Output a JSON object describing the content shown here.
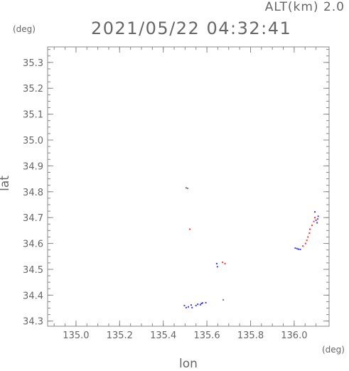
{
  "header": {
    "alt_label": "ALT(km) 2.0",
    "timestamp": "2021/05/22 04:32:41",
    "y_unit": "(deg)",
    "x_unit": "(deg)"
  },
  "chart_data": {
    "type": "scatter",
    "title": "2021/05/22 04:32:41",
    "xlabel": "lon",
    "ylabel": "lat",
    "xlim": [
      134.87,
      136.16
    ],
    "ylim": [
      34.28,
      35.36
    ],
    "x_ticks": [
      "135.0",
      "135.2",
      "135.4",
      "135.6",
      "135.8",
      "136.0"
    ],
    "y_ticks": [
      "34.3",
      "34.4",
      "34.5",
      "34.6",
      "34.7",
      "34.8",
      "34.9",
      "35.0",
      "35.1",
      "35.2",
      "35.3"
    ],
    "grid": false,
    "colors": {
      "blue": "#3a3aff",
      "red": "#ff3030",
      "gray": "#777777"
    },
    "points": [
      {
        "x": 135.505,
        "y": 34.815,
        "c": "gray"
      },
      {
        "x": 135.512,
        "y": 34.813,
        "c": "gray"
      },
      {
        "x": 135.522,
        "y": 34.655,
        "c": "red"
      },
      {
        "x": 135.645,
        "y": 34.522,
        "c": "blue"
      },
      {
        "x": 135.648,
        "y": 34.51,
        "c": "blue"
      },
      {
        "x": 135.672,
        "y": 34.527,
        "c": "red"
      },
      {
        "x": 135.683,
        "y": 34.522,
        "c": "red"
      },
      {
        "x": 135.675,
        "y": 34.382,
        "c": "gray"
      },
      {
        "x": 135.497,
        "y": 34.36,
        "c": "blue"
      },
      {
        "x": 135.505,
        "y": 34.352,
        "c": "blue"
      },
      {
        "x": 135.515,
        "y": 34.355,
        "c": "blue"
      },
      {
        "x": 135.528,
        "y": 34.362,
        "c": "blue"
      },
      {
        "x": 135.532,
        "y": 34.352,
        "c": "blue"
      },
      {
        "x": 135.55,
        "y": 34.36,
        "c": "blue"
      },
      {
        "x": 135.558,
        "y": 34.365,
        "c": "blue"
      },
      {
        "x": 135.57,
        "y": 34.363,
        "c": "blue"
      },
      {
        "x": 135.575,
        "y": 34.368,
        "c": "blue"
      },
      {
        "x": 135.58,
        "y": 34.37,
        "c": "blue"
      },
      {
        "x": 135.595,
        "y": 34.371,
        "c": "blue"
      },
      {
        "x": 136.005,
        "y": 34.582,
        "c": "blue"
      },
      {
        "x": 136.013,
        "y": 34.58,
        "c": "blue"
      },
      {
        "x": 136.02,
        "y": 34.578,
        "c": "blue"
      },
      {
        "x": 136.028,
        "y": 34.577,
        "c": "blue"
      },
      {
        "x": 136.04,
        "y": 34.59,
        "c": "red"
      },
      {
        "x": 136.052,
        "y": 34.6,
        "c": "red"
      },
      {
        "x": 136.058,
        "y": 34.612,
        "c": "red"
      },
      {
        "x": 136.063,
        "y": 34.625,
        "c": "red"
      },
      {
        "x": 136.07,
        "y": 34.64,
        "c": "red"
      },
      {
        "x": 136.072,
        "y": 34.655,
        "c": "red"
      },
      {
        "x": 136.082,
        "y": 34.67,
        "c": "red"
      },
      {
        "x": 136.09,
        "y": 34.685,
        "c": "red"
      },
      {
        "x": 136.095,
        "y": 34.7,
        "c": "red"
      },
      {
        "x": 136.1,
        "y": 34.69,
        "c": "blue"
      },
      {
        "x": 136.105,
        "y": 34.68,
        "c": "blue"
      },
      {
        "x": 136.108,
        "y": 34.695,
        "c": "red"
      },
      {
        "x": 136.095,
        "y": 34.722,
        "c": "blue"
      },
      {
        "x": 136.11,
        "y": 34.705,
        "c": "blue"
      }
    ]
  }
}
